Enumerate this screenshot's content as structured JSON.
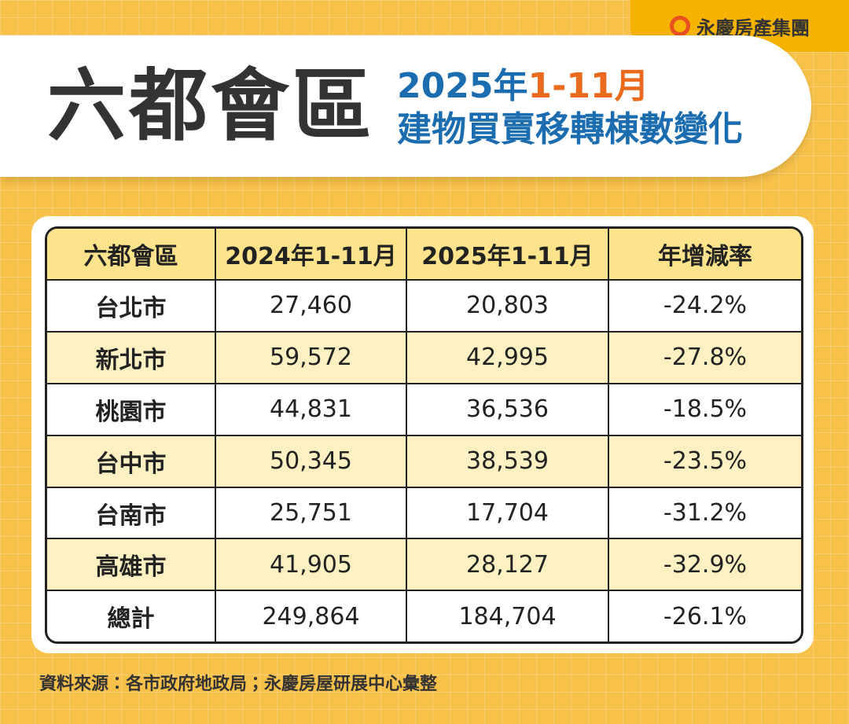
{
  "brand": "永慶房產集團",
  "header": {
    "title": "六都會區",
    "subtitle_year": "2025年",
    "subtitle_period": "1-11月",
    "subtitle_line2": "建物買賣移轉棟數變化"
  },
  "table": {
    "columns": [
      "六都會區",
      "2024年1-11月",
      "2025年1-11月",
      "年增減率"
    ],
    "rows": [
      [
        "台北市",
        "27,460",
        "20,803",
        "-24.2%"
      ],
      [
        "新北市",
        "59,572",
        "42,995",
        "-27.8%"
      ],
      [
        "桃園市",
        "44,831",
        "36,536",
        "-18.5%"
      ],
      [
        "台中市",
        "50,345",
        "38,539",
        "-23.5%"
      ],
      [
        "台南市",
        "25,751",
        "17,704",
        "-31.2%"
      ],
      [
        "高雄市",
        "41,905",
        "28,127",
        "-32.9%"
      ],
      [
        "總計",
        "249,864",
        "184,704",
        "-26.1%"
      ]
    ]
  },
  "footer": {
    "source": "資料來源：各市政府地政局；永慶房屋研展中心彙整"
  }
}
